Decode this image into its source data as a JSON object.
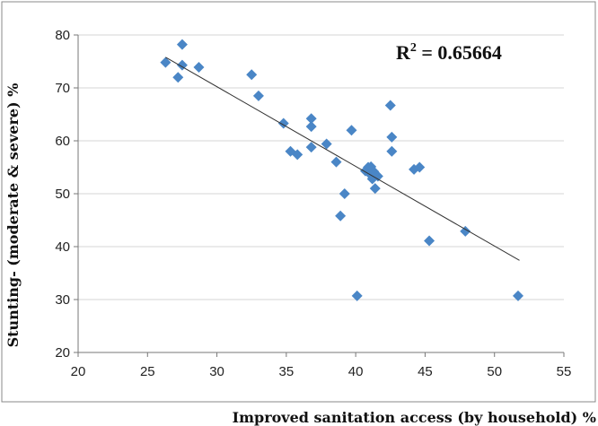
{
  "chart_data": {
    "type": "scatter",
    "title": "",
    "xlabel": "Improved sanitation access (by household) %",
    "ylabel": "Stunting- (moderate & severe) %",
    "xlim": [
      20,
      55
    ],
    "ylim": [
      20,
      80
    ],
    "x_ticks": [
      "20",
      "25",
      "30",
      "35",
      "40",
      "45",
      "50",
      "55"
    ],
    "y_ticks": [
      "20",
      "30",
      "40",
      "50",
      "60",
      "70",
      "80"
    ],
    "grid": true,
    "marker_color": "#4a86c6",
    "annotation": {
      "text": "R",
      "sup": "2",
      "value": " = 0.65664"
    },
    "trendline": {
      "x": [
        26.3,
        51.8
      ],
      "y": [
        75.8,
        37.4
      ]
    },
    "points": [
      {
        "x": 26.3,
        "y": 74.8
      },
      {
        "x": 27.2,
        "y": 72.0
      },
      {
        "x": 27.5,
        "y": 78.2
      },
      {
        "x": 27.5,
        "y": 74.3
      },
      {
        "x": 28.7,
        "y": 73.9
      },
      {
        "x": 32.5,
        "y": 72.5
      },
      {
        "x": 33.0,
        "y": 68.5
      },
      {
        "x": 34.8,
        "y": 63.3
      },
      {
        "x": 35.3,
        "y": 58.0
      },
      {
        "x": 35.8,
        "y": 57.4
      },
      {
        "x": 36.8,
        "y": 64.2
      },
      {
        "x": 36.8,
        "y": 62.7
      },
      {
        "x": 36.8,
        "y": 58.8
      },
      {
        "x": 37.9,
        "y": 59.4
      },
      {
        "x": 38.6,
        "y": 56.0
      },
      {
        "x": 38.9,
        "y": 45.8
      },
      {
        "x": 39.2,
        "y": 50.0
      },
      {
        "x": 39.7,
        "y": 62.0
      },
      {
        "x": 40.1,
        "y": 30.7
      },
      {
        "x": 40.7,
        "y": 54.3
      },
      {
        "x": 40.9,
        "y": 55.0
      },
      {
        "x": 41.0,
        "y": 53.8
      },
      {
        "x": 41.1,
        "y": 55.1
      },
      {
        "x": 41.2,
        "y": 52.8
      },
      {
        "x": 41.3,
        "y": 54.2
      },
      {
        "x": 41.4,
        "y": 51.0
      },
      {
        "x": 41.6,
        "y": 53.3
      },
      {
        "x": 42.5,
        "y": 66.7
      },
      {
        "x": 42.6,
        "y": 60.7
      },
      {
        "x": 42.6,
        "y": 58.0
      },
      {
        "x": 44.2,
        "y": 54.6
      },
      {
        "x": 44.6,
        "y": 55.0
      },
      {
        "x": 45.3,
        "y": 41.1
      },
      {
        "x": 47.9,
        "y": 42.9
      },
      {
        "x": 51.7,
        "y": 30.7
      }
    ]
  }
}
